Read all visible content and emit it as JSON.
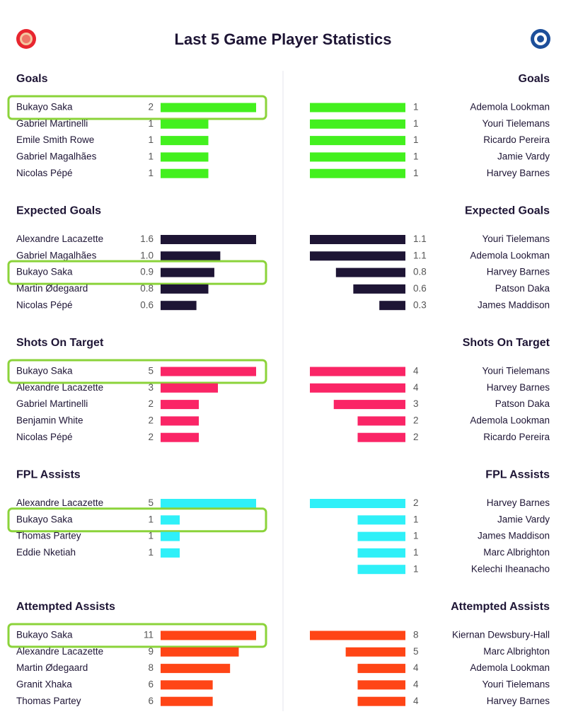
{
  "title": "Last 5 Game Player Statistics",
  "sections": [
    {
      "color": "#43f01e",
      "left": {
        "title": "Goals",
        "rows": [
          {
            "name": "Bukayo Saka",
            "value": 2,
            "highlighted": true
          },
          {
            "name": "Gabriel Martinelli",
            "value": 1
          },
          {
            "name": "Emile Smith Rowe",
            "value": 1
          },
          {
            "name": "Gabriel Magalhães",
            "value": 1
          },
          {
            "name": "Nicolas Pépé",
            "value": 1
          }
        ]
      },
      "right": {
        "title": "Goals",
        "rows": [
          {
            "name": "Ademola Lookman",
            "value": 1
          },
          {
            "name": "Youri Tielemans",
            "value": 1
          },
          {
            "name": "Ricardo Pereira",
            "value": 1
          },
          {
            "name": "Jamie Vardy",
            "value": 1
          },
          {
            "name": "Harvey Barnes",
            "value": 1
          }
        ]
      }
    },
    {
      "color": "#1e1535",
      "left": {
        "title": "Expected Goals",
        "rows": [
          {
            "name": "Alexandre Lacazette",
            "value": 1.6
          },
          {
            "name": "Gabriel Magalhães",
            "value": 1.0,
            "value_label": "1.0"
          },
          {
            "name": "Bukayo Saka",
            "value": 0.9,
            "highlighted": true
          },
          {
            "name": "Martin Ødegaard",
            "value": 0.8
          },
          {
            "name": "Nicolas Pépé",
            "value": 0.6
          }
        ]
      },
      "right": {
        "title": "Expected Goals",
        "rows": [
          {
            "name": "Youri Tielemans",
            "value": 1.1
          },
          {
            "name": "Ademola Lookman",
            "value": 1.1
          },
          {
            "name": "Harvey Barnes",
            "value": 0.8
          },
          {
            "name": "Patson Daka",
            "value": 0.6
          },
          {
            "name": "James Maddison",
            "value": 0.3
          }
        ]
      }
    },
    {
      "color": "#fa2566",
      "left": {
        "title": "Shots On Target",
        "rows": [
          {
            "name": "Bukayo Saka",
            "value": 5,
            "highlighted": true
          },
          {
            "name": "Alexandre Lacazette",
            "value": 3
          },
          {
            "name": "Gabriel Martinelli",
            "value": 2
          },
          {
            "name": "Benjamin White",
            "value": 2
          },
          {
            "name": "Nicolas Pépé",
            "value": 2
          }
        ]
      },
      "right": {
        "title": "Shots On Target",
        "rows": [
          {
            "name": "Youri Tielemans",
            "value": 4
          },
          {
            "name": "Harvey Barnes",
            "value": 4
          },
          {
            "name": "Patson Daka",
            "value": 3
          },
          {
            "name": "Ademola Lookman",
            "value": 2
          },
          {
            "name": "Ricardo Pereira",
            "value": 2
          }
        ]
      }
    },
    {
      "color": "#2ff0f8",
      "left": {
        "title": "FPL Assists",
        "rows": [
          {
            "name": "Alexandre Lacazette",
            "value": 5
          },
          {
            "name": "Bukayo Saka",
            "value": 1,
            "highlighted": true
          },
          {
            "name": "Thomas Partey",
            "value": 1
          },
          {
            "name": "Eddie Nketiah",
            "value": 1
          }
        ]
      },
      "right": {
        "title": "FPL Assists",
        "rows": [
          {
            "name": "Harvey Barnes",
            "value": 2
          },
          {
            "name": "Jamie Vardy",
            "value": 1
          },
          {
            "name": "James Maddison",
            "value": 1
          },
          {
            "name": "Marc Albrighton",
            "value": 1
          },
          {
            "name": "Kelechi Iheanacho",
            "value": 1
          }
        ]
      }
    },
    {
      "color": "#ff4516",
      "left": {
        "title": "Attempted Assists",
        "rows": [
          {
            "name": "Bukayo Saka",
            "value": 11,
            "highlighted": true
          },
          {
            "name": "Alexandre Lacazette",
            "value": 9
          },
          {
            "name": "Martin Ødegaard",
            "value": 8
          },
          {
            "name": "Granit Xhaka",
            "value": 6
          },
          {
            "name": "Thomas Partey",
            "value": 6
          }
        ]
      },
      "right": {
        "title": "Attempted Assists",
        "rows": [
          {
            "name": "Kiernan Dewsbury-Hall",
            "value": 8
          },
          {
            "name": "Marc Albrighton",
            "value": 5
          },
          {
            "name": "Ademola Lookman",
            "value": 4
          },
          {
            "name": "Youri Tielemans",
            "value": 4
          },
          {
            "name": "Harvey Barnes",
            "value": 4
          }
        ]
      }
    }
  ]
}
